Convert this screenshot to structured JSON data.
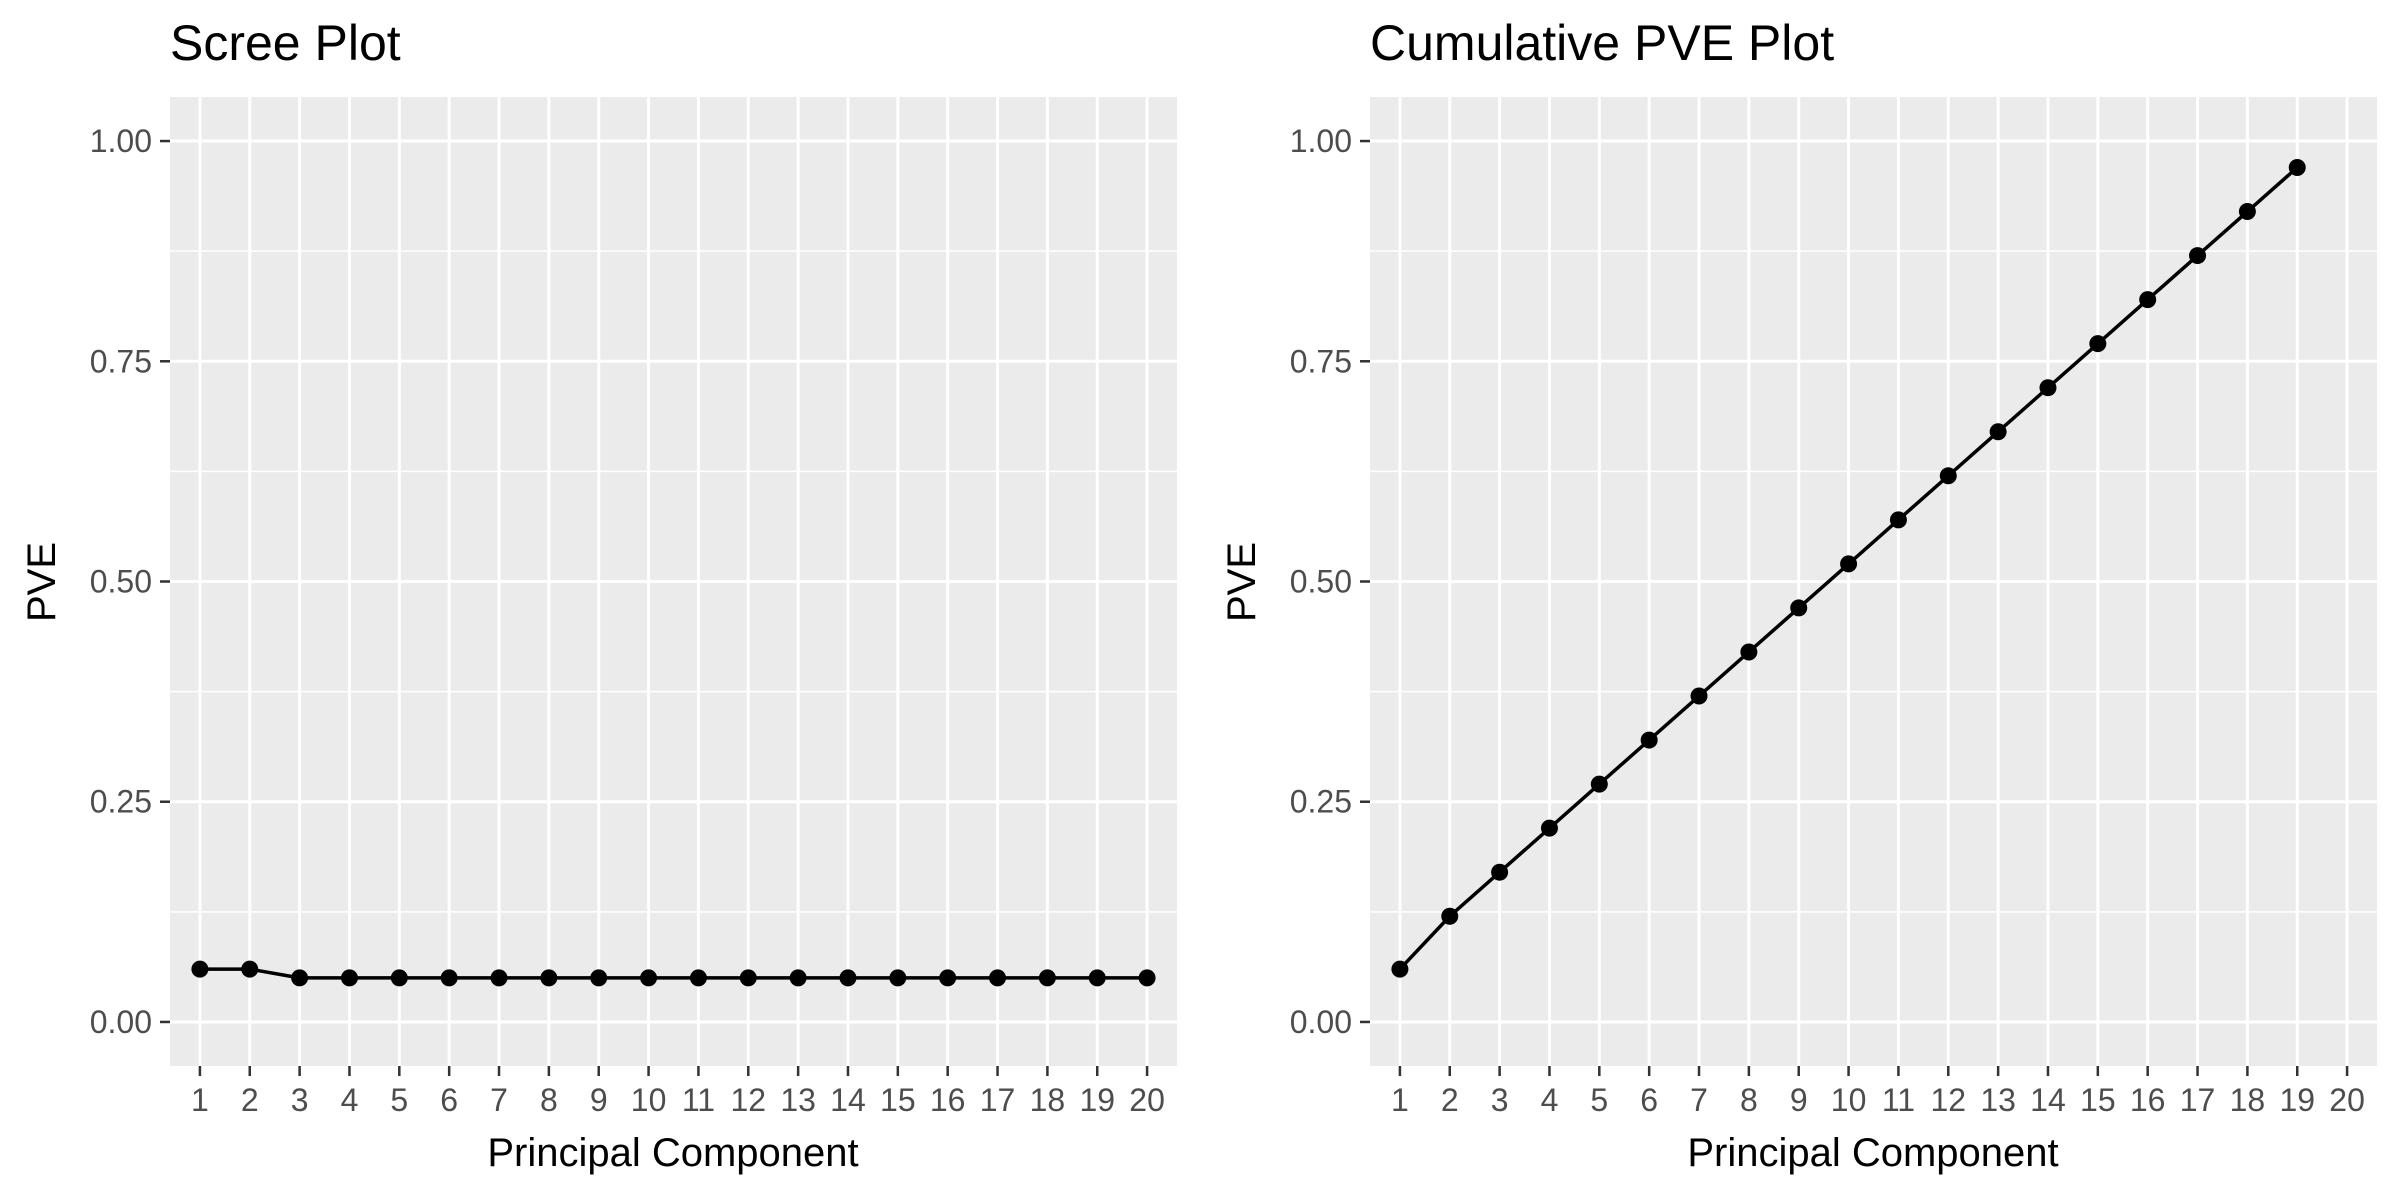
{
  "colors": {
    "panel_background": "#ebebeb",
    "grid_major": "#ffffff",
    "tick_text": "#4d4d4d",
    "series": "#000000"
  },
  "chart_data": [
    {
      "type": "line",
      "title": "Scree Plot",
      "xlabel": "Principal Component",
      "ylabel": "PVE",
      "x": [
        1,
        2,
        3,
        4,
        5,
        6,
        7,
        8,
        9,
        10,
        11,
        12,
        13,
        14,
        15,
        16,
        17,
        18,
        19,
        20
      ],
      "series": [
        {
          "values": [
            0.06,
            0.06,
            0.05,
            0.05,
            0.05,
            0.05,
            0.05,
            0.05,
            0.05,
            0.05,
            0.05,
            0.05,
            0.05,
            0.05,
            0.05,
            0.05,
            0.05,
            0.05,
            0.05,
            0.05
          ]
        }
      ],
      "markers": true,
      "xlim": [
        0.4,
        20.6
      ],
      "ylim": [
        -0.05,
        1.05
      ],
      "xticks": [
        "1",
        "2",
        "3",
        "4",
        "5",
        "6",
        "7",
        "8",
        "9",
        "10",
        "11",
        "12",
        "13",
        "14",
        "15",
        "16",
        "17",
        "18",
        "19",
        "20"
      ],
      "yticks": [
        "0.00",
        "0.25",
        "0.50",
        "0.75",
        "1.00"
      ],
      "ytick_values": [
        0,
        0.25,
        0.5,
        0.75,
        1.0
      ],
      "grid": true,
      "legend": "none"
    },
    {
      "type": "line",
      "title": "Cumulative PVE Plot",
      "xlabel": "Principal Component",
      "ylabel": "PVE",
      "x": [
        1,
        2,
        3,
        4,
        5,
        6,
        7,
        8,
        9,
        10,
        11,
        12,
        13,
        14,
        15,
        16,
        17,
        18,
        19
      ],
      "series": [
        {
          "values": [
            0.06,
            0.12,
            0.17,
            0.22,
            0.27,
            0.32,
            0.37,
            0.42,
            0.47,
            0.52,
            0.57,
            0.62,
            0.67,
            0.72,
            0.77,
            0.82,
            0.87,
            0.92,
            0.97
          ]
        }
      ],
      "markers": true,
      "xlim": [
        0.4,
        20.6
      ],
      "ylim": [
        -0.05,
        1.05
      ],
      "xticks": [
        "1",
        "2",
        "3",
        "4",
        "5",
        "6",
        "7",
        "8",
        "9",
        "10",
        "11",
        "12",
        "13",
        "14",
        "15",
        "16",
        "17",
        "18",
        "19",
        "20"
      ],
      "yticks": [
        "0.00",
        "0.25",
        "0.50",
        "0.75",
        "1.00"
      ],
      "ytick_values": [
        0,
        0.25,
        0.5,
        0.75,
        1.0
      ],
      "grid": true,
      "legend": "none"
    }
  ]
}
